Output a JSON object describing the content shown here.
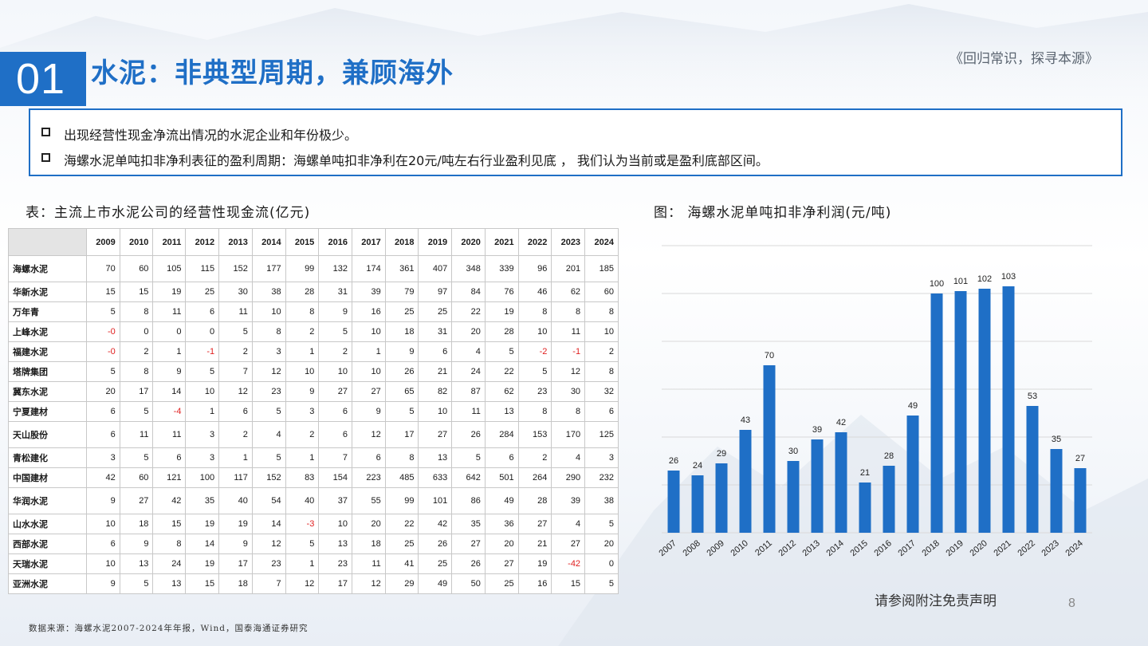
{
  "header": {
    "section_number": "01",
    "title": "水泥：非典型周期，兼顾海外",
    "slogan": "《回归常识，探寻本源》"
  },
  "bullets": [
    "出现经营性现金净流出情况的水泥企业和年份极少。",
    "海螺水泥单吨扣非净利表征的盈利周期：海螺单吨扣非净利在20元/吨左右行业盈利见底 ， 我们认为当前或是盈利底部区间。"
  ],
  "table": {
    "title": "表：主流上市水泥公司的经营性现金流(亿元)",
    "years": [
      "2009",
      "2010",
      "2011",
      "2012",
      "2013",
      "2014",
      "2015",
      "2016",
      "2017",
      "2018",
      "2019",
      "2020",
      "2021",
      "2022",
      "2023",
      "2024"
    ],
    "rows": [
      {
        "name": "海螺水泥",
        "values": [
          "70",
          "60",
          "105",
          "115",
          "152",
          "177",
          "99",
          "132",
          "174",
          "361",
          "407",
          "348",
          "339",
          "96",
          "201",
          "185"
        ]
      },
      {
        "name": "华新水泥",
        "values": [
          "15",
          "15",
          "19",
          "25",
          "30",
          "38",
          "28",
          "31",
          "39",
          "79",
          "97",
          "84",
          "76",
          "46",
          "62",
          "60"
        ]
      },
      {
        "name": "万年青",
        "values": [
          "5",
          "8",
          "11",
          "6",
          "11",
          "10",
          "8",
          "9",
          "16",
          "25",
          "25",
          "22",
          "19",
          "8",
          "8",
          "8"
        ]
      },
      {
        "name": "上峰水泥",
        "values": [
          "-0",
          "0",
          "0",
          "0",
          "5",
          "8",
          "2",
          "5",
          "10",
          "18",
          "31",
          "20",
          "28",
          "10",
          "11",
          "10"
        ]
      },
      {
        "name": "福建水泥",
        "values": [
          "-0",
          "2",
          "1",
          "-1",
          "2",
          "3",
          "1",
          "2",
          "1",
          "9",
          "6",
          "4",
          "5",
          "-2",
          "-1",
          "2"
        ]
      },
      {
        "name": "塔牌集团",
        "values": [
          "5",
          "8",
          "9",
          "5",
          "7",
          "12",
          "10",
          "10",
          "10",
          "26",
          "21",
          "24",
          "22",
          "5",
          "12",
          "8"
        ]
      },
      {
        "name": "冀东水泥",
        "values": [
          "20",
          "17",
          "14",
          "10",
          "12",
          "23",
          "9",
          "27",
          "27",
          "65",
          "82",
          "87",
          "62",
          "23",
          "30",
          "32"
        ]
      },
      {
        "name": "宁夏建材",
        "values": [
          "6",
          "5",
          "-4",
          "1",
          "6",
          "5",
          "3",
          "6",
          "9",
          "5",
          "10",
          "11",
          "13",
          "8",
          "8",
          "6"
        ]
      },
      {
        "name": "天山股份",
        "values": [
          "6",
          "11",
          "11",
          "3",
          "2",
          "4",
          "2",
          "6",
          "12",
          "17",
          "27",
          "26",
          "284",
          "153",
          "170",
          "125"
        ]
      },
      {
        "name": "青松建化",
        "values": [
          "3",
          "5",
          "6",
          "3",
          "1",
          "5",
          "1",
          "7",
          "6",
          "8",
          "13",
          "5",
          "6",
          "2",
          "4",
          "3"
        ]
      },
      {
        "name": "中国建材",
        "values": [
          "42",
          "60",
          "121",
          "100",
          "117",
          "152",
          "83",
          "154",
          "223",
          "485",
          "633",
          "642",
          "501",
          "264",
          "290",
          "232"
        ]
      },
      {
        "name": "华润水泥",
        "values": [
          "9",
          "27",
          "42",
          "35",
          "40",
          "54",
          "40",
          "37",
          "55",
          "99",
          "101",
          "86",
          "49",
          "28",
          "39",
          "38"
        ]
      },
      {
        "name": "山水水泥",
        "values": [
          "10",
          "18",
          "15",
          "19",
          "19",
          "14",
          "-3",
          "10",
          "20",
          "22",
          "42",
          "35",
          "36",
          "27",
          "4",
          "5"
        ]
      },
      {
        "name": "西部水泥",
        "values": [
          "6",
          "9",
          "8",
          "14",
          "9",
          "12",
          "5",
          "13",
          "18",
          "25",
          "26",
          "27",
          "20",
          "21",
          "27",
          "20"
        ]
      },
      {
        "name": "天瑞水泥",
        "values": [
          "10",
          "13",
          "24",
          "19",
          "17",
          "23",
          "1",
          "23",
          "11",
          "41",
          "25",
          "26",
          "27",
          "19",
          "-42",
          "0"
        ]
      },
      {
        "name": "亚洲水泥",
        "values": [
          "9",
          "5",
          "13",
          "15",
          "18",
          "7",
          "12",
          "17",
          "12",
          "29",
          "49",
          "50",
          "25",
          "16",
          "15",
          "5"
        ]
      }
    ]
  },
  "chart_data": {
    "type": "bar",
    "title": "图： 海螺水泥单吨扣非净利润(元/吨)",
    "categories": [
      "2007",
      "2008",
      "2009",
      "2010",
      "2011",
      "2012",
      "2013",
      "2014",
      "2015",
      "2016",
      "2017",
      "2018",
      "2019",
      "2020",
      "2021",
      "2022",
      "2023",
      "2024"
    ],
    "values": [
      26,
      24,
      29,
      43,
      70,
      30,
      39,
      42,
      21,
      28,
      49,
      100,
      101,
      102,
      103,
      53,
      35,
      27
    ],
    "ylim": [
      0,
      120
    ],
    "grid": true,
    "bar_color": "#1f6fc6",
    "xlabel": "",
    "ylabel": ""
  },
  "footer": {
    "disclaimer": "请参阅附注免责声明",
    "page_number": "8",
    "source": "数据来源：海螺水泥2007-2024年年报，Wind，国泰海通证券研究"
  }
}
